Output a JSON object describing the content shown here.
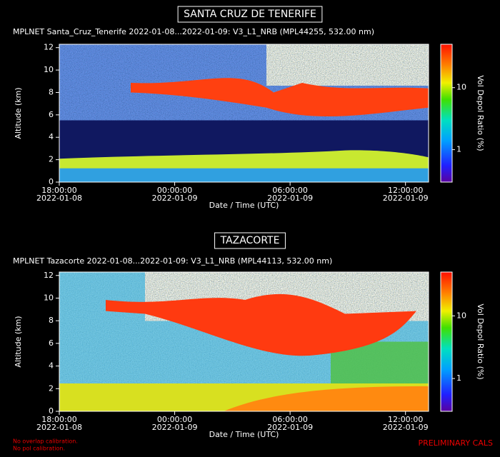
{
  "chart_data": [
    {
      "type": "heatmap",
      "title": "SANTA CRUZ DE TENERIFE",
      "subtitle": "MPLNET Santa_Cruz_Tenerife 2022-01-08...2022-01-09:  V3_L1_NRB  (MPL44255, 532.00 nm)",
      "xlabel": "Date / Time (UTC)",
      "ylabel": "Altitude (km)",
      "colorbar_label": "Vol Depol Ratio (%)",
      "ylim": [
        0,
        12.3
      ],
      "yticks": [
        0,
        2,
        4,
        6,
        8,
        10,
        12
      ],
      "xlim": [
        0,
        19.2
      ],
      "xticks": [
        {
          "value": 0,
          "label": "18:00:00"
        },
        {
          "value": 6,
          "label": "00:00:00"
        },
        {
          "value": 12,
          "label": "06:00:00"
        },
        {
          "value": 18,
          "label": "12:00:00"
        }
      ],
      "xtick_dates": [
        "2022-01-08",
        "2022-01-09",
        "2022-01-09",
        "2022-01-09"
      ],
      "clim": [
        0.3,
        50
      ],
      "clog": true,
      "cticks": [
        1,
        10
      ]
    },
    {
      "type": "heatmap",
      "title": "TAZACORTE",
      "subtitle": "MPLNET Tazacorte 2022-01-08...2022-01-09:  V3_L1_NRB  (MPL44113, 532.00 nm)",
      "xlabel": "Date / Time (UTC)",
      "ylabel": "Altitude (km)",
      "colorbar_label": "Vol Depol Ratio (%)",
      "ylim": [
        0,
        12.3
      ],
      "yticks": [
        0,
        2,
        4,
        6,
        8,
        10,
        12
      ],
      "xlim": [
        0,
        19.2
      ],
      "xticks": [
        {
          "value": 0,
          "label": "18:00:00"
        },
        {
          "value": 6,
          "label": "00:00:00"
        },
        {
          "value": 12,
          "label": "06:00:00"
        },
        {
          "value": 18,
          "label": "12:00:00"
        }
      ],
      "xtick_dates": [
        "2022-01-08",
        "2022-01-09",
        "2022-01-09",
        "2022-01-09"
      ],
      "clim": [
        0.3,
        50
      ],
      "clog": true,
      "cticks": [
        1,
        10
      ]
    }
  ],
  "notes": [
    "No overlap calibration.",
    "No pol calibration."
  ],
  "status": "PRELIMINARY CALS"
}
